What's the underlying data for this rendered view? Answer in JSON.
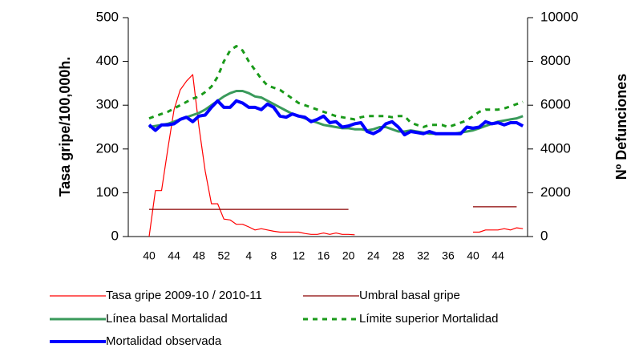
{
  "chart_data": {
    "type": "line",
    "y_label": "Tasa gripe/100,000h.",
    "y2_label": "Nº Defunciones",
    "categories": [
      "40",
      null,
      null,
      null,
      "44",
      null,
      null,
      null,
      "48",
      null,
      null,
      null,
      "52",
      null,
      null,
      null,
      "4",
      null,
      null,
      null,
      "8",
      null,
      null,
      null,
      "12",
      null,
      null,
      null,
      "16",
      null,
      null,
      null,
      "20",
      null,
      null,
      null,
      "24",
      null,
      null,
      null,
      "28",
      null,
      null,
      null,
      "32",
      null,
      null,
      null,
      "36",
      null,
      null,
      null,
      "40",
      null,
      null,
      null,
      "44",
      null,
      null,
      null,
      null
    ],
    "ylim": [
      0,
      500
    ],
    "yticks": [
      0,
      100,
      200,
      300,
      400,
      500
    ],
    "y2lim": [
      0,
      10000
    ],
    "y2ticks": [
      0,
      2000,
      4000,
      6000,
      8000,
      10000
    ],
    "series": [
      {
        "name": "Tasa gripe 2009-10 / 2010-11",
        "color": "#ff0000",
        "width": 1.2,
        "style": "solid",
        "values": [
          0,
          105,
          105,
          200,
          290,
          335,
          355,
          370,
          250,
          150,
          75,
          75,
          40,
          38,
          28,
          28,
          22,
          15,
          18,
          15,
          12,
          10,
          10,
          10,
          10,
          7,
          5,
          5,
          8,
          5,
          8,
          5,
          5,
          4,
          null,
          null,
          null,
          null,
          null,
          null,
          null,
          null,
          null,
          null,
          null,
          null,
          null,
          null,
          null,
          null,
          null,
          null,
          10,
          10,
          15,
          15,
          15,
          18,
          15,
          20,
          18
        ]
      },
      {
        "name": "Umbral basal gripe",
        "color": "#8b0000",
        "width": 1.2,
        "style": "solid",
        "values": [
          62,
          62,
          62,
          62,
          62,
          62,
          62,
          62,
          62,
          62,
          62,
          62,
          62,
          62,
          62,
          62,
          62,
          62,
          62,
          62,
          62,
          62,
          62,
          62,
          62,
          62,
          62,
          62,
          62,
          62,
          62,
          62,
          62,
          null,
          null,
          null,
          null,
          null,
          null,
          null,
          null,
          null,
          null,
          null,
          null,
          null,
          null,
          null,
          null,
          null,
          null,
          null,
          68,
          68,
          68,
          68,
          68,
          68,
          68,
          68,
          null
        ]
      },
      {
        "name": "Línea basal Mortalidad",
        "color": "#3a9a5b",
        "width": 3,
        "style": "solid",
        "axis": "y2",
        "values": [
          5000,
          5050,
          5100,
          5150,
          5250,
          5350,
          5450,
          5550,
          5650,
          5800,
          6000,
          6200,
          6400,
          6550,
          6650,
          6650,
          6550,
          6400,
          6350,
          6200,
          6050,
          5900,
          5750,
          5600,
          5500,
          5400,
          5300,
          5200,
          5100,
          5050,
          5000,
          4950,
          4950,
          4900,
          4900,
          4850,
          4900,
          5000,
          5000,
          4900,
          4800,
          4800,
          4850,
          4800,
          4750,
          4700,
          4700,
          4700,
          4700,
          4700,
          4750,
          4800,
          4850,
          4950,
          5050,
          5150,
          5250,
          5300,
          5350,
          5400,
          5500
        ]
      },
      {
        "name": "Límite superior Mortalidad",
        "color": "#1a9a1a",
        "width": 3,
        "style": "dashed",
        "axis": "y2",
        "values": [
          5400,
          5500,
          5600,
          5700,
          5850,
          6000,
          6150,
          6300,
          6400,
          6600,
          6850,
          7300,
          8000,
          8500,
          8700,
          8500,
          8000,
          7600,
          7200,
          6900,
          6800,
          6700,
          6500,
          6300,
          6100,
          6000,
          5900,
          5800,
          5700,
          5600,
          5500,
          5450,
          5400,
          5350,
          5450,
          5500,
          5500,
          5500,
          5500,
          5450,
          5500,
          5500,
          5200,
          5100,
          5000,
          5100,
          5100,
          5100,
          5000,
          5100,
          5200,
          5300,
          5500,
          5700,
          5800,
          5800,
          5800,
          5850,
          5950,
          6050,
          6150
        ]
      },
      {
        "name": "Mortalidad observada",
        "color": "#0000ff",
        "width": 4,
        "style": "solid",
        "axis": "y2",
        "values": [
          5100,
          4850,
          5100,
          5100,
          5150,
          5350,
          5450,
          5250,
          5500,
          5550,
          5900,
          6200,
          5900,
          5900,
          6200,
          6100,
          5900,
          5900,
          5800,
          6050,
          5900,
          5500,
          5450,
          5600,
          5500,
          5450,
          5250,
          5350,
          5500,
          5200,
          5250,
          5000,
          5050,
          5150,
          5200,
          4800,
          4700,
          4850,
          5150,
          5250,
          5000,
          4650,
          4800,
          4750,
          4700,
          4800,
          4700,
          4700,
          4700,
          4700,
          4700,
          5000,
          4950,
          5000,
          5250,
          5150,
          5200,
          5100,
          5200,
          5200,
          5050
        ]
      }
    ]
  }
}
